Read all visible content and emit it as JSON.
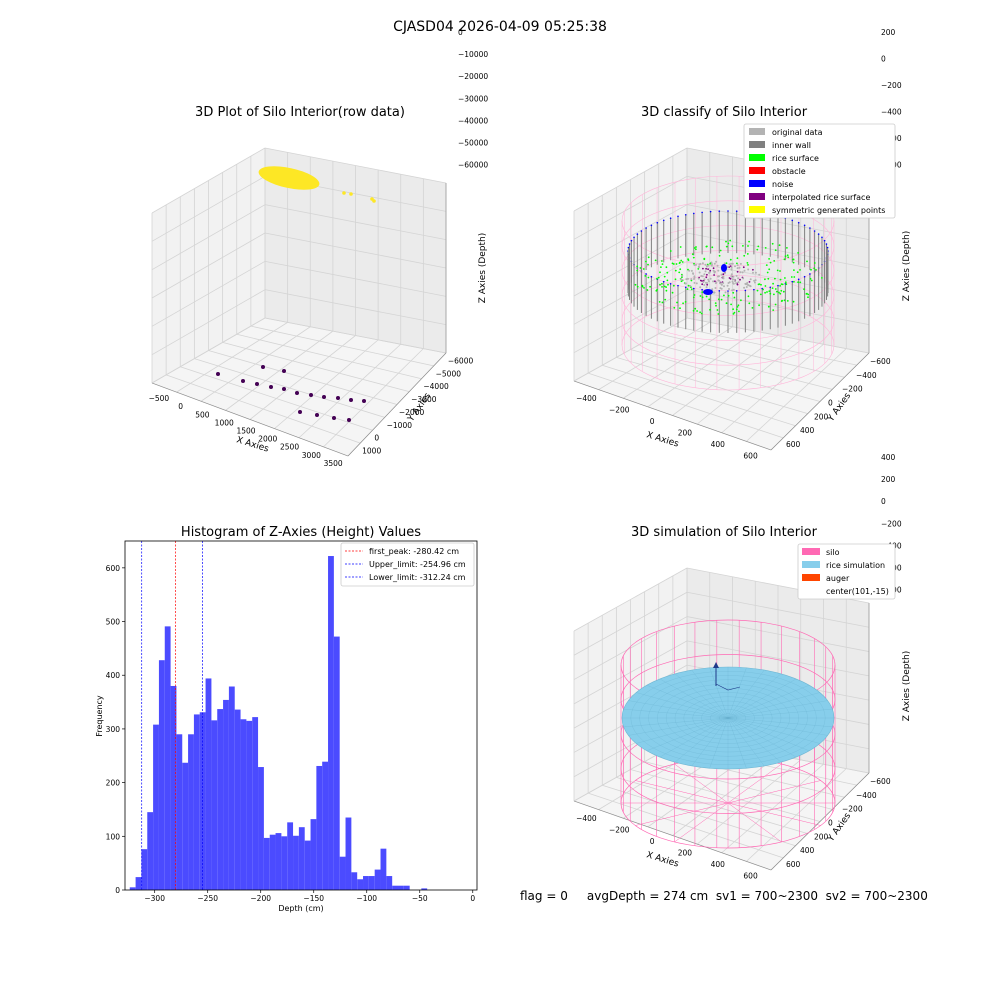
{
  "suptitle": "CJASD04 2026-04-09 05:25:38",
  "footer": "flag = 0     avgDepth = 274 cm  sv1 = 700~2300  sv2 = 700~2300",
  "colors": {
    "yellow": "#fde725",
    "purple": "#440154",
    "hist_blue": "#4b4bff",
    "original": "#b3b3b3",
    "inner_wall": "#808080",
    "rice": "#00ff00",
    "obstacle": "#ff0000",
    "noise": "#0000ff",
    "interp": "#800080",
    "symmetric": "#ffff00",
    "silo_pink": "#ff69b4",
    "silo_light_pink": "#ffb6d9",
    "rice_sim": "#87ceeb",
    "auger": "#ff4500"
  },
  "chart_data": [
    {
      "type": "scatter",
      "title": "3D Plot of Silo Interior(row data)",
      "xlabel": "X Axies",
      "ylabel": "Y Axies",
      "zlabel": "Z Axies (Depth)",
      "xticks": [
        "−500",
        "0",
        "500",
        "1000",
        "1500",
        "2000",
        "2500",
        "3000",
        "3500"
      ],
      "yticks": [
        "1000",
        "0",
        "−1000",
        "−2000",
        "−3000",
        "−4000",
        "−5000",
        "−6000"
      ],
      "zticks": [
        "0",
        "−10000",
        "−20000",
        "−30000",
        "−40000",
        "−50000",
        "−60000"
      ],
      "grid": true,
      "colormap": [
        "yellow",
        "purple"
      ]
    },
    {
      "type": "scatter",
      "title": "3D classify of Silo Interior",
      "xlabel": "X Axies",
      "ylabel": "Y Axies",
      "zlabel": "Z Axies (Depth)",
      "xticks": [
        "−400",
        "−200",
        "0",
        "200",
        "400",
        "600"
      ],
      "yticks": [
        "600",
        "400",
        "200",
        "0",
        "−200",
        "−400",
        "−600"
      ],
      "zticks": [
        "200",
        "0",
        "−200",
        "−400",
        "−600",
        "−800"
      ],
      "legend_placement": "top-right",
      "legend": [
        {
          "label": "original data",
          "color": "#b3b3b3"
        },
        {
          "label": "inner wall",
          "color": "#808080"
        },
        {
          "label": "rice surface",
          "color": "#00ff00"
        },
        {
          "label": "obstacle",
          "color": "#ff0000"
        },
        {
          "label": "noise",
          "color": "#0000ff"
        },
        {
          "label": "interpolated rice surface",
          "color": "#800080"
        },
        {
          "label": "symmetric generated points",
          "color": "#ffff00"
        }
      ]
    },
    {
      "type": "bar",
      "title": "Histogram of Z-Axies (Height) Values",
      "xlabel": "Depth (cm)",
      "ylabel": "Frequency",
      "xlim": [
        -328,
        4
      ],
      "ylim": [
        0,
        650
      ],
      "xticks": [
        -300,
        -250,
        -200,
        -150,
        -100,
        -50,
        0
      ],
      "yticks": [
        0,
        100,
        200,
        300,
        400,
        500,
        600
      ],
      "bin_width": 5.5,
      "bin_start": -323.5,
      "values": [
        5,
        24,
        76,
        145,
        308,
        428,
        491,
        380,
        290,
        237,
        290,
        327,
        331,
        394,
        316,
        337,
        354,
        379,
        336,
        318,
        315,
        322,
        229,
        97,
        103,
        106,
        100,
        126,
        101,
        117,
        92,
        132,
        231,
        239,
        622,
        472,
        62,
        135,
        33,
        20,
        26,
        26,
        38,
        77,
        26,
        8,
        8,
        8,
        0,
        0,
        3
      ],
      "vlines": [
        {
          "x": -280.42,
          "color": "#ff0000",
          "label": "first_peak: -280.42 cm"
        },
        {
          "x": -254.96,
          "color": "#0000ff",
          "label": "Upper_limit: -254.96 cm"
        },
        {
          "x": -312.24,
          "color": "#0000ff",
          "label": "Lower_limit: -312.24 cm"
        }
      ],
      "legend_placement": "top-right"
    },
    {
      "type": "scatter",
      "title": "3D simulation of Silo Interior",
      "xlabel": "X Axies",
      "ylabel": "Y Axies",
      "zlabel": "Z Axies (Depth)",
      "xticks": [
        "−400",
        "−200",
        "0",
        "200",
        "400",
        "600"
      ],
      "yticks": [
        "600",
        "400",
        "200",
        "0",
        "−200",
        "−400",
        "−600"
      ],
      "zticks": [
        "400",
        "200",
        "0",
        "−200",
        "−400",
        "−600",
        "−800"
      ],
      "legend_placement": "top-right",
      "legend": [
        {
          "label": "silo",
          "color": "#ff69b4"
        },
        {
          "label": "rice simulation",
          "color": "#87ceeb"
        },
        {
          "label": "auger",
          "color": "#ff4500"
        },
        {
          "label": "center(101,-15)",
          "color": ""
        }
      ]
    }
  ]
}
